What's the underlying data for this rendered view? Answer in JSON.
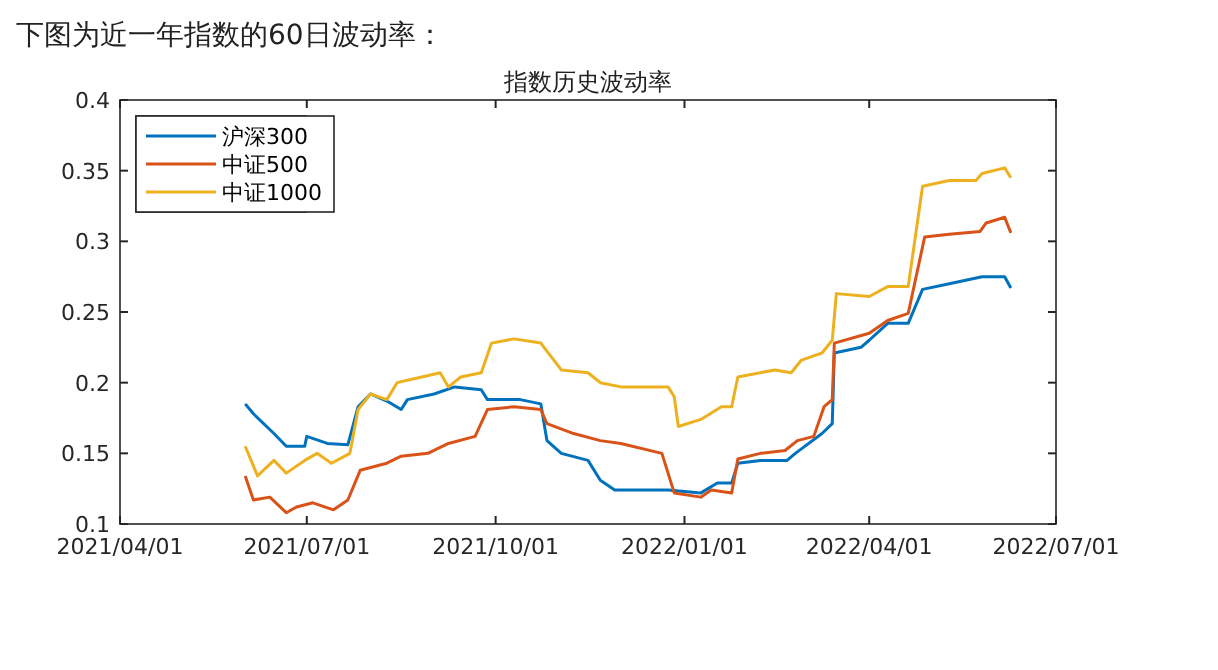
{
  "chart_data": {
    "type": "line",
    "title": "指数历史波动率",
    "annotations": [
      "下图为近一年指数的60日波动率："
    ],
    "xlim": [
      "2021-04-01",
      "2022-07-01"
    ],
    "xticks": [
      {
        "value": "2021-04-01",
        "label": "2021/04/01"
      },
      {
        "value": "2021-07-01",
        "label": "2021/07/01"
      },
      {
        "value": "2021-10-01",
        "label": "2021/10/01"
      },
      {
        "value": "2022-01-01",
        "label": "2022/01/01"
      },
      {
        "value": "2022-04-01",
        "label": "2022/04/01"
      },
      {
        "value": "2022-07-01",
        "label": "2022/07/01"
      }
    ],
    "ylim": [
      0.1,
      0.4
    ],
    "yticks": [
      0.1,
      0.15,
      0.2,
      0.25,
      0.3,
      0.35,
      0.4
    ],
    "legend": "top left",
    "grid": false,
    "marker": "none",
    "line_style": "solid",
    "series": [
      {
        "name": "沪深300",
        "color": "#0072bd",
        "x": [
          "2021-06-01",
          "2021-06-05",
          "2021-06-15",
          "2021-06-21",
          "2021-06-30",
          "2021-07-01",
          "2021-07-11",
          "2021-07-21",
          "2021-07-26",
          "2021-08-01",
          "2021-08-09",
          "2021-08-16",
          "2021-08-19",
          "2021-09-01",
          "2021-09-11",
          "2021-09-24",
          "2021-09-27",
          "2021-10-13",
          "2021-10-23",
          "2021-10-26",
          "2021-11-02",
          "2021-11-15",
          "2021-11-21",
          "2021-11-28",
          "2021-12-01",
          "2021-12-24",
          "2022-01-09",
          "2022-01-17",
          "2022-01-24",
          "2022-01-27",
          "2022-02-07",
          "2022-02-20",
          "2022-02-24",
          "2022-03-09",
          "2022-03-14",
          "2022-03-15",
          "2022-03-28",
          "2022-04-01",
          "2022-04-10",
          "2022-04-20",
          "2022-04-27",
          "2022-05-10",
          "2022-05-26",
          "2022-06-06",
          "2022-06-09"
        ],
        "values": [
          0.185,
          0.178,
          0.164,
          0.155,
          0.155,
          0.162,
          0.157,
          0.156,
          0.183,
          0.192,
          0.187,
          0.181,
          0.188,
          0.192,
          0.197,
          0.195,
          0.188,
          0.188,
          0.185,
          0.159,
          0.15,
          0.145,
          0.131,
          0.124,
          0.124,
          0.124,
          0.122,
          0.129,
          0.129,
          0.143,
          0.145,
          0.145,
          0.15,
          0.164,
          0.171,
          0.221,
          0.225,
          0.23,
          0.242,
          0.242,
          0.266,
          0.27,
          0.275,
          0.275,
          0.267
        ]
      },
      {
        "name": "中证500",
        "color": "#d95319",
        "x": [
          "2021-06-01",
          "2021-06-05",
          "2021-06-13",
          "2021-06-21",
          "2021-06-26",
          "2021-07-04",
          "2021-07-14",
          "2021-07-21",
          "2021-07-27",
          "2021-08-09",
          "2021-08-16",
          "2021-08-29",
          "2021-09-08",
          "2021-09-21",
          "2021-09-27",
          "2021-10-10",
          "2021-10-23",
          "2021-10-26",
          "2021-11-08",
          "2021-11-21",
          "2021-12-01",
          "2021-12-21",
          "2021-12-24",
          "2021-12-27",
          "2022-01-09",
          "2022-01-14",
          "2022-01-24",
          "2022-01-27",
          "2022-02-07",
          "2022-02-19",
          "2022-02-25",
          "2022-03-05",
          "2022-03-10",
          "2022-03-14",
          "2022-03-15",
          "2022-04-01",
          "2022-04-10",
          "2022-04-20",
          "2022-04-28",
          "2022-05-10",
          "2022-05-25",
          "2022-05-28",
          "2022-06-06",
          "2022-06-09"
        ],
        "values": [
          0.134,
          0.117,
          0.119,
          0.108,
          0.112,
          0.115,
          0.11,
          0.117,
          0.138,
          0.143,
          0.148,
          0.15,
          0.157,
          0.162,
          0.181,
          0.183,
          0.181,
          0.171,
          0.164,
          0.159,
          0.157,
          0.15,
          0.136,
          0.122,
          0.119,
          0.124,
          0.122,
          0.146,
          0.15,
          0.152,
          0.159,
          0.162,
          0.183,
          0.188,
          0.228,
          0.235,
          0.244,
          0.249,
          0.303,
          0.305,
          0.307,
          0.313,
          0.317,
          0.306
        ]
      },
      {
        "name": "中证1000",
        "color": "#edb120",
        "x": [
          "2021-06-01",
          "2021-06-07",
          "2021-06-15",
          "2021-06-21",
          "2021-06-30",
          "2021-07-06",
          "2021-07-13",
          "2021-07-22",
          "2021-07-26",
          "2021-08-01",
          "2021-08-09",
          "2021-08-14",
          "2021-08-26",
          "2021-09-04",
          "2021-09-08",
          "2021-09-14",
          "2021-09-24",
          "2021-09-29",
          "2021-10-10",
          "2021-10-23",
          "2021-11-02",
          "2021-11-15",
          "2021-11-21",
          "2021-12-01",
          "2021-12-24",
          "2021-12-27",
          "2021-12-29",
          "2022-01-09",
          "2022-01-19",
          "2022-01-24",
          "2022-01-27",
          "2022-02-14",
          "2022-02-22",
          "2022-02-27",
          "2022-03-09",
          "2022-03-14",
          "2022-03-16",
          "2022-04-01",
          "2022-04-10",
          "2022-04-20",
          "2022-04-27",
          "2022-05-10",
          "2022-05-23",
          "2022-05-26",
          "2022-06-06",
          "2022-06-09"
        ],
        "values": [
          0.155,
          0.134,
          0.145,
          0.136,
          0.145,
          0.15,
          0.143,
          0.15,
          0.181,
          0.192,
          0.188,
          0.2,
          0.204,
          0.207,
          0.197,
          0.204,
          0.207,
          0.228,
          0.231,
          0.228,
          0.209,
          0.207,
          0.2,
          0.197,
          0.197,
          0.19,
          0.169,
          0.174,
          0.183,
          0.183,
          0.204,
          0.209,
          0.207,
          0.216,
          0.221,
          0.23,
          0.263,
          0.261,
          0.268,
          0.268,
          0.339,
          0.343,
          0.343,
          0.348,
          0.352,
          0.345
        ]
      }
    ]
  }
}
